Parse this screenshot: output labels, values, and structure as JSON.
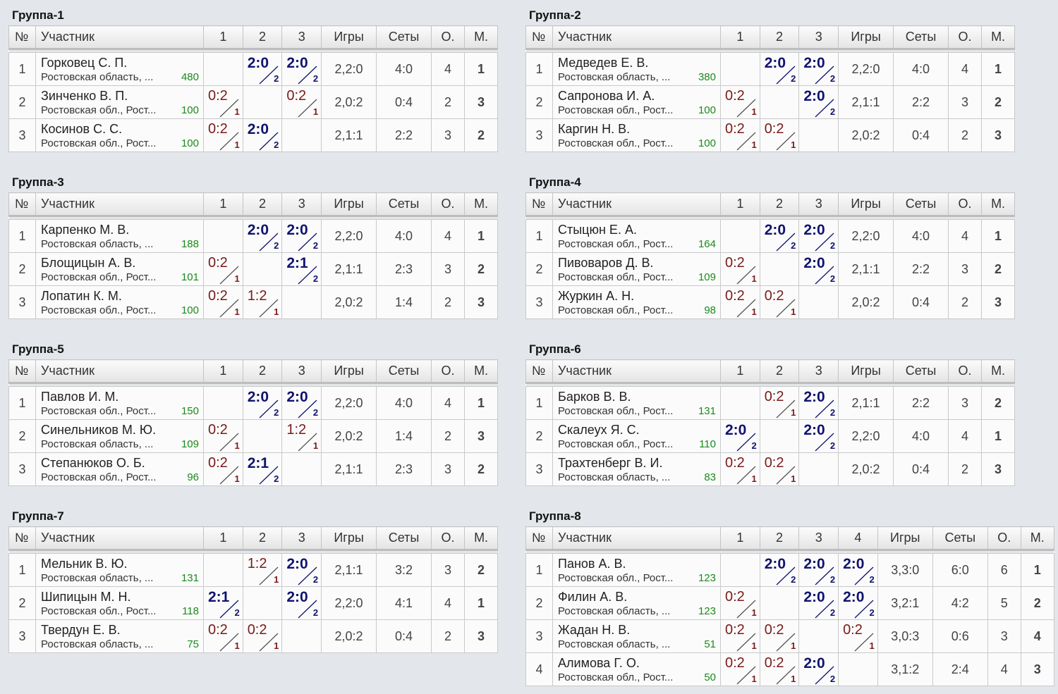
{
  "groups": [
    {
      "title": "Группа-1",
      "headers": [
        "№",
        "Участник",
        "1",
        "2",
        "3",
        "Игры",
        "Сеты",
        "О.",
        "М."
      ],
      "rows": [
        {
          "num": "1",
          "name": "Горковец С. П.",
          "region": "Ростовская область, ...",
          "rating": "480",
          "cells": [
            null,
            {
              "score": "2:0",
              "pts": "2"
            },
            {
              "score": "2:0",
              "pts": "2"
            }
          ],
          "games": "2,2:0",
          "sets": "4:0",
          "points": "4",
          "place": "1"
        },
        {
          "num": "2",
          "name": "Зинченко В. П.",
          "region": "Ростовская обл., Рост...",
          "rating": "100",
          "cells": [
            {
              "score": "0:2",
              "pts": "1"
            },
            null,
            {
              "score": "0:2",
              "pts": "1"
            }
          ],
          "games": "2,0:2",
          "sets": "0:4",
          "points": "2",
          "place": "3"
        },
        {
          "num": "3",
          "name": "Косинов С. С.",
          "region": "Ростовская обл., Рост...",
          "rating": "100",
          "cells": [
            {
              "score": "0:2",
              "pts": "1"
            },
            {
              "score": "2:0",
              "pts": "2"
            },
            null
          ],
          "games": "2,1:1",
          "sets": "2:2",
          "points": "3",
          "place": "2"
        }
      ]
    },
    {
      "title": "Группа-2",
      "headers": [
        "№",
        "Участник",
        "1",
        "2",
        "3",
        "Игры",
        "Сеты",
        "О.",
        "М."
      ],
      "rows": [
        {
          "num": "1",
          "name": "Медведев Е. В.",
          "region": "Ростовская область, ...",
          "rating": "380",
          "cells": [
            null,
            {
              "score": "2:0",
              "pts": "2"
            },
            {
              "score": "2:0",
              "pts": "2"
            }
          ],
          "games": "2,2:0",
          "sets": "4:0",
          "points": "4",
          "place": "1"
        },
        {
          "num": "2",
          "name": "Сапронова И. А.",
          "region": "Ростовская обл., Рост...",
          "rating": "100",
          "cells": [
            {
              "score": "0:2",
              "pts": "1"
            },
            null,
            {
              "score": "2:0",
              "pts": "2"
            }
          ],
          "games": "2,1:1",
          "sets": "2:2",
          "points": "3",
          "place": "2"
        },
        {
          "num": "3",
          "name": "Каргин Н. В.",
          "region": "Ростовская обл., Рост...",
          "rating": "100",
          "cells": [
            {
              "score": "0:2",
              "pts": "1"
            },
            {
              "score": "0:2",
              "pts": "1"
            },
            null
          ],
          "games": "2,0:2",
          "sets": "0:4",
          "points": "2",
          "place": "3"
        }
      ]
    },
    {
      "title": "Группа-3",
      "headers": [
        "№",
        "Участник",
        "1",
        "2",
        "3",
        "Игры",
        "Сеты",
        "О.",
        "М."
      ],
      "rows": [
        {
          "num": "1",
          "name": "Карпенко М. В.",
          "region": "Ростовская область, ...",
          "rating": "188",
          "cells": [
            null,
            {
              "score": "2:0",
              "pts": "2"
            },
            {
              "score": "2:0",
              "pts": "2"
            }
          ],
          "games": "2,2:0",
          "sets": "4:0",
          "points": "4",
          "place": "1"
        },
        {
          "num": "2",
          "name": "Блощицын А. В.",
          "region": "Ростовская обл., Рост...",
          "rating": "101",
          "cells": [
            {
              "score": "0:2",
              "pts": "1"
            },
            null,
            {
              "score": "2:1",
              "pts": "2"
            }
          ],
          "games": "2,1:1",
          "sets": "2:3",
          "points": "3",
          "place": "2"
        },
        {
          "num": "3",
          "name": "Лопатин К. М.",
          "region": "Ростовская обл., Рост...",
          "rating": "100",
          "cells": [
            {
              "score": "0:2",
              "pts": "1"
            },
            {
              "score": "1:2",
              "pts": "1"
            },
            null
          ],
          "games": "2,0:2",
          "sets": "1:4",
          "points": "2",
          "place": "3"
        }
      ]
    },
    {
      "title": "Группа-4",
      "headers": [
        "№",
        "Участник",
        "1",
        "2",
        "3",
        "Игры",
        "Сеты",
        "О.",
        "М."
      ],
      "rows": [
        {
          "num": "1",
          "name": "Стыцюн Е. А.",
          "region": "Ростовская обл., Рост...",
          "rating": "164",
          "cells": [
            null,
            {
              "score": "2:0",
              "pts": "2"
            },
            {
              "score": "2:0",
              "pts": "2"
            }
          ],
          "games": "2,2:0",
          "sets": "4:0",
          "points": "4",
          "place": "1"
        },
        {
          "num": "2",
          "name": "Пивоваров Д. В.",
          "region": "Ростовская обл., Рост...",
          "rating": "109",
          "cells": [
            {
              "score": "0:2",
              "pts": "1"
            },
            null,
            {
              "score": "2:0",
              "pts": "2"
            }
          ],
          "games": "2,1:1",
          "sets": "2:2",
          "points": "3",
          "place": "2"
        },
        {
          "num": "3",
          "name": "Журкин А. Н.",
          "region": "Ростовская обл., Рост...",
          "rating": "98",
          "cells": [
            {
              "score": "0:2",
              "pts": "1"
            },
            {
              "score": "0:2",
              "pts": "1"
            },
            null
          ],
          "games": "2,0:2",
          "sets": "0:4",
          "points": "2",
          "place": "3"
        }
      ]
    },
    {
      "title": "Группа-5",
      "headers": [
        "№",
        "Участник",
        "1",
        "2",
        "3",
        "Игры",
        "Сеты",
        "О.",
        "М."
      ],
      "rows": [
        {
          "num": "1",
          "name": "Павлов И. М.",
          "region": "Ростовская обл., Рост...",
          "rating": "150",
          "cells": [
            null,
            {
              "score": "2:0",
              "pts": "2"
            },
            {
              "score": "2:0",
              "pts": "2"
            }
          ],
          "games": "2,2:0",
          "sets": "4:0",
          "points": "4",
          "place": "1"
        },
        {
          "num": "2",
          "name": "Синельников М. Ю.",
          "region": "Ростовская область, ...",
          "rating": "109",
          "cells": [
            {
              "score": "0:2",
              "pts": "1"
            },
            null,
            {
              "score": "1:2",
              "pts": "1"
            }
          ],
          "games": "2,0:2",
          "sets": "1:4",
          "points": "2",
          "place": "3"
        },
        {
          "num": "3",
          "name": "Степанюков О. Б.",
          "region": "Ростовская обл., Рост...",
          "rating": "96",
          "cells": [
            {
              "score": "0:2",
              "pts": "1"
            },
            {
              "score": "2:1",
              "pts": "2"
            },
            null
          ],
          "games": "2,1:1",
          "sets": "2:3",
          "points": "3",
          "place": "2"
        }
      ]
    },
    {
      "title": "Группа-6",
      "headers": [
        "№",
        "Участник",
        "1",
        "2",
        "3",
        "Игры",
        "Сеты",
        "О.",
        "М."
      ],
      "rows": [
        {
          "num": "1",
          "name": "Барков В. В.",
          "region": "Ростовская обл., Рост...",
          "rating": "131",
          "cells": [
            null,
            {
              "score": "0:2",
              "pts": "1"
            },
            {
              "score": "2:0",
              "pts": "2"
            }
          ],
          "games": "2,1:1",
          "sets": "2:2",
          "points": "3",
          "place": "2"
        },
        {
          "num": "2",
          "name": "Скалеух Я. С.",
          "region": "Ростовская обл., Рост...",
          "rating": "110",
          "cells": [
            {
              "score": "2:0",
              "pts": "2"
            },
            null,
            {
              "score": "2:0",
              "pts": "2"
            }
          ],
          "games": "2,2:0",
          "sets": "4:0",
          "points": "4",
          "place": "1"
        },
        {
          "num": "3",
          "name": "Трахтенберг В. И.",
          "region": "Ростовская область, ...",
          "rating": "83",
          "cells": [
            {
              "score": "0:2",
              "pts": "1"
            },
            {
              "score": "0:2",
              "pts": "1"
            },
            null
          ],
          "games": "2,0:2",
          "sets": "0:4",
          "points": "2",
          "place": "3"
        }
      ]
    },
    {
      "title": "Группа-7",
      "headers": [
        "№",
        "Участник",
        "1",
        "2",
        "3",
        "Игры",
        "Сеты",
        "О.",
        "М."
      ],
      "rows": [
        {
          "num": "1",
          "name": "Мельник В. Ю.",
          "region": "Ростовская область, ...",
          "rating": "131",
          "cells": [
            null,
            {
              "score": "1:2",
              "pts": "1"
            },
            {
              "score": "2:0",
              "pts": "2"
            }
          ],
          "games": "2,1:1",
          "sets": "3:2",
          "points": "3",
          "place": "2"
        },
        {
          "num": "2",
          "name": "Шипицын М. Н.",
          "region": "Ростовская обл., Рост...",
          "rating": "118",
          "cells": [
            {
              "score": "2:1",
              "pts": "2"
            },
            null,
            {
              "score": "2:0",
              "pts": "2"
            }
          ],
          "games": "2,2:0",
          "sets": "4:1",
          "points": "4",
          "place": "1"
        },
        {
          "num": "3",
          "name": "Твердун Е. В.",
          "region": "Ростовская область, ...",
          "rating": "75",
          "cells": [
            {
              "score": "0:2",
              "pts": "1"
            },
            {
              "score": "0:2",
              "pts": "1"
            },
            null
          ],
          "games": "2,0:2",
          "sets": "0:4",
          "points": "2",
          "place": "3"
        }
      ]
    },
    {
      "title": "Группа-8",
      "headers": [
        "№",
        "Участник",
        "1",
        "2",
        "3",
        "4",
        "Игры",
        "Сеты",
        "О.",
        "М."
      ],
      "rows": [
        {
          "num": "1",
          "name": "Панов А. В.",
          "region": "Ростовская обл., Рост...",
          "rating": "123",
          "cells": [
            null,
            {
              "score": "2:0",
              "pts": "2"
            },
            {
              "score": "2:0",
              "pts": "2"
            },
            {
              "score": "2:0",
              "pts": "2"
            }
          ],
          "games": "3,3:0",
          "sets": "6:0",
          "points": "6",
          "place": "1"
        },
        {
          "num": "2",
          "name": "Филин А. В.",
          "region": "Ростовская область, ...",
          "rating": "123",
          "cells": [
            {
              "score": "0:2",
              "pts": "1"
            },
            null,
            {
              "score": "2:0",
              "pts": "2"
            },
            {
              "score": "2:0",
              "pts": "2"
            }
          ],
          "games": "3,2:1",
          "sets": "4:2",
          "points": "5",
          "place": "2"
        },
        {
          "num": "3",
          "name": "Жадан Н. В.",
          "region": "Ростовская область, ...",
          "rating": "51",
          "cells": [
            {
              "score": "0:2",
              "pts": "1"
            },
            {
              "score": "0:2",
              "pts": "1"
            },
            null,
            {
              "score": "0:2",
              "pts": "1"
            }
          ],
          "games": "3,0:3",
          "sets": "0:6",
          "points": "3",
          "place": "4"
        },
        {
          "num": "4",
          "name": "Алимова Г. О.",
          "region": "Ростовская обл., Рост...",
          "rating": "50",
          "cells": [
            {
              "score": "0:2",
              "pts": "1"
            },
            {
              "score": "0:2",
              "pts": "1"
            },
            {
              "score": "2:0",
              "pts": "2"
            },
            null
          ],
          "games": "3,1:2",
          "sets": "2:4",
          "points": "4",
          "place": "3"
        }
      ]
    }
  ]
}
